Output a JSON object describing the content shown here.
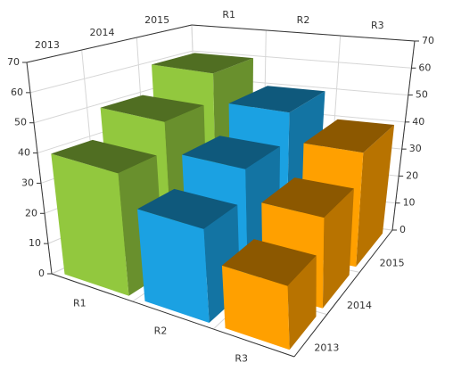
{
  "chart_data": {
    "type": "bar3d",
    "categories": [
      "R1",
      "R2",
      "R3"
    ],
    "series": [
      {
        "name": "2013",
        "values": [
          40,
          30,
          20
        ]
      },
      {
        "name": "2014",
        "values": [
          50,
          40,
          30
        ]
      },
      {
        "name": "2015",
        "values": [
          60,
          50,
          40
        ]
      }
    ],
    "colors": [
      "#92c83e",
      "#1ba1e2",
      "#ffa000"
    ],
    "ylim": [
      0,
      70
    ],
    "yticks": [
      0,
      10,
      20,
      30,
      40,
      50,
      60,
      70
    ],
    "grid": true
  }
}
